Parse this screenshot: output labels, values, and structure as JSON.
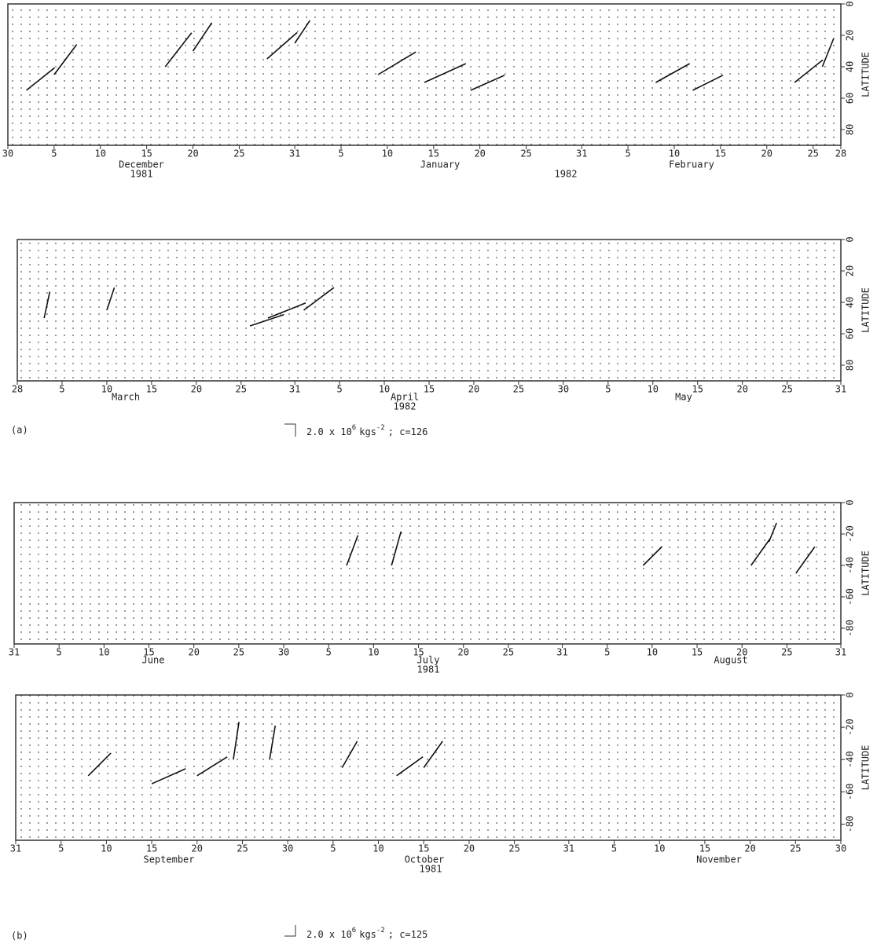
{
  "chart_data": [
    {
      "type": "quiver",
      "y_label": "LATITUDE",
      "xlim": [
        0,
        90
      ],
      "ylim": [
        0,
        90
      ],
      "xticks": [
        {
          "value": 0,
          "label": "30"
        },
        5,
        10,
        15,
        20,
        25,
        31,
        {
          "value": 36,
          "label": "5"
        },
        {
          "value": 41,
          "label": "10"
        },
        {
          "value": 46,
          "label": "15"
        },
        {
          "value": 51,
          "label": "20"
        },
        {
          "value": 56,
          "label": "25"
        },
        {
          "value": 62,
          "label": "31"
        },
        {
          "value": 67,
          "label": "5"
        },
        {
          "value": 72,
          "label": "10"
        },
        {
          "value": 77,
          "label": "15"
        },
        {
          "value": 82,
          "label": "20"
        },
        {
          "value": 87,
          "label": "25"
        },
        {
          "value": 90,
          "label": "28"
        }
      ],
      "yticks": [
        0,
        20,
        40,
        60,
        80
      ],
      "months": [
        "December",
        "January",
        "February"
      ],
      "years": [
        "1981",
        "1982"
      ],
      "vectors": {
        "x": [
          2,
          5,
          17,
          20,
          28,
          31,
          40,
          45,
          50,
          70,
          74,
          85,
          88
        ],
        "y": [
          55,
          45,
          40,
          30,
          35,
          25,
          45,
          50,
          55,
          50,
          55,
          50,
          40
        ],
        "u": [
          1.5,
          1.2,
          1.4,
          1.0,
          1.6,
          0.8,
          2.0,
          2.2,
          1.8,
          1.8,
          1.6,
          1.5,
          0.6
        ],
        "v": [
          1.2,
          1.6,
          1.8,
          1.5,
          1.4,
          1.2,
          1.2,
          1.0,
          0.8,
          1.0,
          0.8,
          1.2,
          1.5
        ]
      }
    },
    {
      "type": "quiver",
      "y_label": "LATITUDE",
      "xlim": [
        0,
        92
      ],
      "ylim": [
        0,
        90
      ],
      "xticks": [
        {
          "value": 0,
          "label": "28"
        },
        5,
        10,
        15,
        20,
        25,
        31,
        {
          "value": 36,
          "label": "5"
        },
        {
          "value": 41,
          "label": "10"
        },
        {
          "value": 46,
          "label": "15"
        },
        {
          "value": 51,
          "label": "20"
        },
        {
          "value": 56,
          "label": "25"
        },
        {
          "value": 61,
          "label": "30"
        },
        {
          "value": 66,
          "label": "5"
        },
        {
          "value": 71,
          "label": "10"
        },
        {
          "value": 76,
          "label": "15"
        },
        {
          "value": 81,
          "label": "20"
        },
        {
          "value": 86,
          "label": "25"
        },
        {
          "value": 92,
          "label": "31"
        }
      ],
      "yticks": [
        0,
        20,
        40,
        60,
        80
      ],
      "months": [
        "March",
        "April",
        "May"
      ],
      "years": [
        "1982"
      ],
      "vectors": {
        "x": [
          3,
          10,
          26,
          28,
          32
        ],
        "y": [
          50,
          45,
          55,
          50,
          45
        ],
        "u": [
          0.3,
          0.4,
          1.8,
          2.0,
          1.6
        ],
        "v": [
          1.4,
          1.2,
          0.6,
          0.8,
          1.2
        ]
      }
    },
    {
      "type": "quiver",
      "y_label": "LATITUDE",
      "xlim": [
        0,
        92
      ],
      "ylim": [
        0,
        -90
      ],
      "xticks": [
        {
          "value": 0,
          "label": "31"
        },
        5,
        10,
        15,
        20,
        25,
        30,
        {
          "value": 35,
          "label": "5"
        },
        {
          "value": 40,
          "label": "10"
        },
        {
          "value": 45,
          "label": "15"
        },
        {
          "value": 50,
          "label": "20"
        },
        {
          "value": 55,
          "label": "25"
        },
        {
          "value": 61,
          "label": "31"
        },
        {
          "value": 66,
          "label": "5"
        },
        {
          "value": 71,
          "label": "10"
        },
        {
          "value": 76,
          "label": "15"
        },
        {
          "value": 81,
          "label": "20"
        },
        {
          "value": 86,
          "label": "25"
        },
        {
          "value": 92,
          "label": "31"
        }
      ],
      "yticks": [
        0,
        -20,
        -40,
        -60,
        -80
      ],
      "months": [
        "June",
        "July",
        "August"
      ],
      "years": [
        "1981"
      ],
      "vectors": {
        "x": [
          37,
          42,
          70,
          82,
          84,
          87
        ],
        "y": [
          -40,
          -40,
          -40,
          -40,
          -25,
          -45
        ],
        "u": [
          0.6,
          0.5,
          1.0,
          1.0,
          0.4,
          1.0
        ],
        "v": [
          1.6,
          1.8,
          1.0,
          1.4,
          1.0,
          1.4
        ]
      }
    },
    {
      "type": "quiver",
      "y_label": "LATITUDE",
      "xlim": [
        0,
        91
      ],
      "ylim": [
        0,
        -90
      ],
      "xticks": [
        {
          "value": 0,
          "label": "31"
        },
        5,
        10,
        15,
        20,
        25,
        30,
        {
          "value": 35,
          "label": "5"
        },
        {
          "value": 40,
          "label": "10"
        },
        {
          "value": 45,
          "label": "15"
        },
        {
          "value": 50,
          "label": "20"
        },
        {
          "value": 55,
          "label": "25"
        },
        {
          "value": 61,
          "label": "31"
        },
        {
          "value": 66,
          "label": "5"
        },
        {
          "value": 71,
          "label": "10"
        },
        {
          "value": 76,
          "label": "15"
        },
        {
          "value": 81,
          "label": "20"
        },
        {
          "value": 86,
          "label": "25"
        },
        {
          "value": 91,
          "label": "30"
        }
      ],
      "yticks": [
        0,
        -20,
        -40,
        -60,
        -80
      ],
      "months": [
        "September",
        "October",
        "November"
      ],
      "years": [
        "1981"
      ],
      "vectors": {
        "x": [
          8,
          15,
          20,
          24,
          28,
          36,
          42,
          45
        ],
        "y": [
          -50,
          -55,
          -50,
          -40,
          -40,
          -45,
          -50,
          -45
        ],
        "u": [
          1.2,
          1.8,
          1.6,
          0.3,
          0.3,
          0.8,
          1.4,
          1.0
        ],
        "v": [
          1.2,
          0.8,
          1.0,
          2.0,
          1.8,
          1.4,
          1.0,
          1.4
        ]
      }
    }
  ],
  "annotations": [
    {
      "panel": "(a)",
      "scale": "2.0 x 10",
      "exponent": "6",
      "unit": "kgs",
      "unit_exponent": "-2",
      "note": "; c=126"
    },
    {
      "panel": "(b)",
      "scale": "2.0 x 10",
      "exponent": "6",
      "unit": "kgs",
      "unit_exponent": "-2",
      "note": "; c=125"
    }
  ]
}
